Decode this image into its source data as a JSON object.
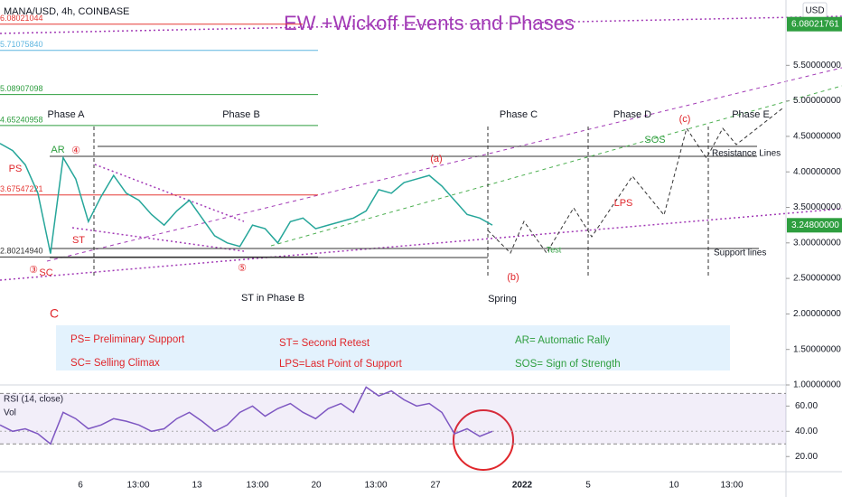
{
  "header": {
    "symbol": "MANA/USD, 4h, COINBASE",
    "currency": "USD"
  },
  "title": "EW +Wickoff Events and Phases",
  "time_axis": [
    "6",
    "13:00",
    "13",
    "13:00",
    "20",
    "13:00",
    "27",
    "2022",
    "5",
    "10",
    "13:00"
  ],
  "annotations": {
    "phase_a": "Phase A",
    "phase_b": "Phase B",
    "phase_c": "Phase C",
    "phase_d": "Phase D",
    "phase_e": "Phase E",
    "ps": "PS",
    "ar": "AR",
    "circ4": "④",
    "st": "ST",
    "sc": "SC",
    "circ3": "③",
    "circ5": "⑤",
    "st_b": "ST in Phase B",
    "a": "(a)",
    "b": "(b)",
    "spring": "Spring",
    "c_wave": "(c)",
    "sos": "SOS",
    "lps": "LPS",
    "test": "Test",
    "resistance": "Resistance Lines",
    "support": "Support lines",
    "c_letter": "C"
  },
  "legend": {
    "ps": "PS= Preliminary Support",
    "sc": "SC= Selling Climax",
    "st": "ST= Second Retest",
    "lps": "LPS=Last Point of Support",
    "ar": "AR= Automatic Rally",
    "sos": "SOS= Sign of Strength"
  },
  "chart_data": [
    {
      "type": "line",
      "color": "#26a69a",
      "values": [
        4.4,
        4.3,
        4.1,
        3.7,
        2.85,
        4.2,
        3.9,
        3.3,
        3.65,
        3.95,
        3.7,
        3.6,
        3.4,
        3.25,
        3.45,
        3.6,
        3.35,
        3.1,
        3.0,
        2.95,
        3.25,
        3.2,
        3.0,
        3.3,
        3.35,
        3.2,
        3.25,
        3.3,
        3.35,
        3.45,
        3.75,
        3.7,
        3.85,
        3.9,
        3.95,
        3.8,
        3.6,
        3.4,
        3.35,
        3.25
      ],
      "ylim": [
        1.0,
        6.42
      ],
      "yticks": [
        {
          "value": 5.5,
          "label": "5.50000000"
        },
        {
          "value": 5.0,
          "label": "5.00000000"
        },
        {
          "value": 4.5,
          "label": "4.50000000"
        },
        {
          "value": 4.0,
          "label": "4.00000000"
        },
        {
          "value": 3.5,
          "label": "3.50000000"
        },
        {
          "value": 3.0,
          "label": "3.00000000"
        },
        {
          "value": 2.5,
          "label": "2.50000000"
        },
        {
          "value": 2.0,
          "label": "2.00000000"
        },
        {
          "value": 1.5,
          "label": "1.50000000"
        },
        {
          "value": 1.0,
          "label": "1.00000000"
        }
      ],
      "price_labels": [
        {
          "value": 6.08021761,
          "label": "6.08021761"
        },
        {
          "value": 3.248,
          "label": "3.24800000"
        }
      ],
      "levels": [
        {
          "value": 6.08021044,
          "label": "6.08021044",
          "color": "#e53935"
        },
        {
          "value": 5.7107584,
          "label": "5.71075840",
          "color": "#5fb6e0"
        },
        {
          "value": 5.08907098,
          "label": "5.08907098",
          "color": "#2e9e3f"
        },
        {
          "value": 4.65240958,
          "label": "4.65240958",
          "color": "#2e9e3f"
        },
        {
          "value": 3.67547221,
          "label": "3.67547221",
          "color": "#e53935"
        },
        {
          "value": 2.8021494,
          "label": "2.80214940",
          "color": "#333333"
        }
      ]
    },
    {
      "type": "line",
      "title": "RSI (14, close)",
      "subtitle": "Vol",
      "color": "#7e57c2",
      "values": [
        45,
        40,
        42,
        38,
        30,
        55,
        50,
        42,
        45,
        50,
        48,
        45,
        40,
        42,
        50,
        55,
        48,
        40,
        45,
        55,
        60,
        52,
        58,
        62,
        55,
        50,
        58,
        62,
        55,
        75,
        68,
        72,
        65,
        60,
        62,
        55,
        38,
        42,
        36,
        40
      ],
      "ylim": [
        8,
        76
      ],
      "yticks": [
        {
          "value": 60,
          "label": "60.00"
        },
        {
          "value": 40,
          "label": "40.00"
        },
        {
          "value": 20,
          "label": "20.00"
        }
      ],
      "band": [
        30,
        70
      ]
    }
  ]
}
